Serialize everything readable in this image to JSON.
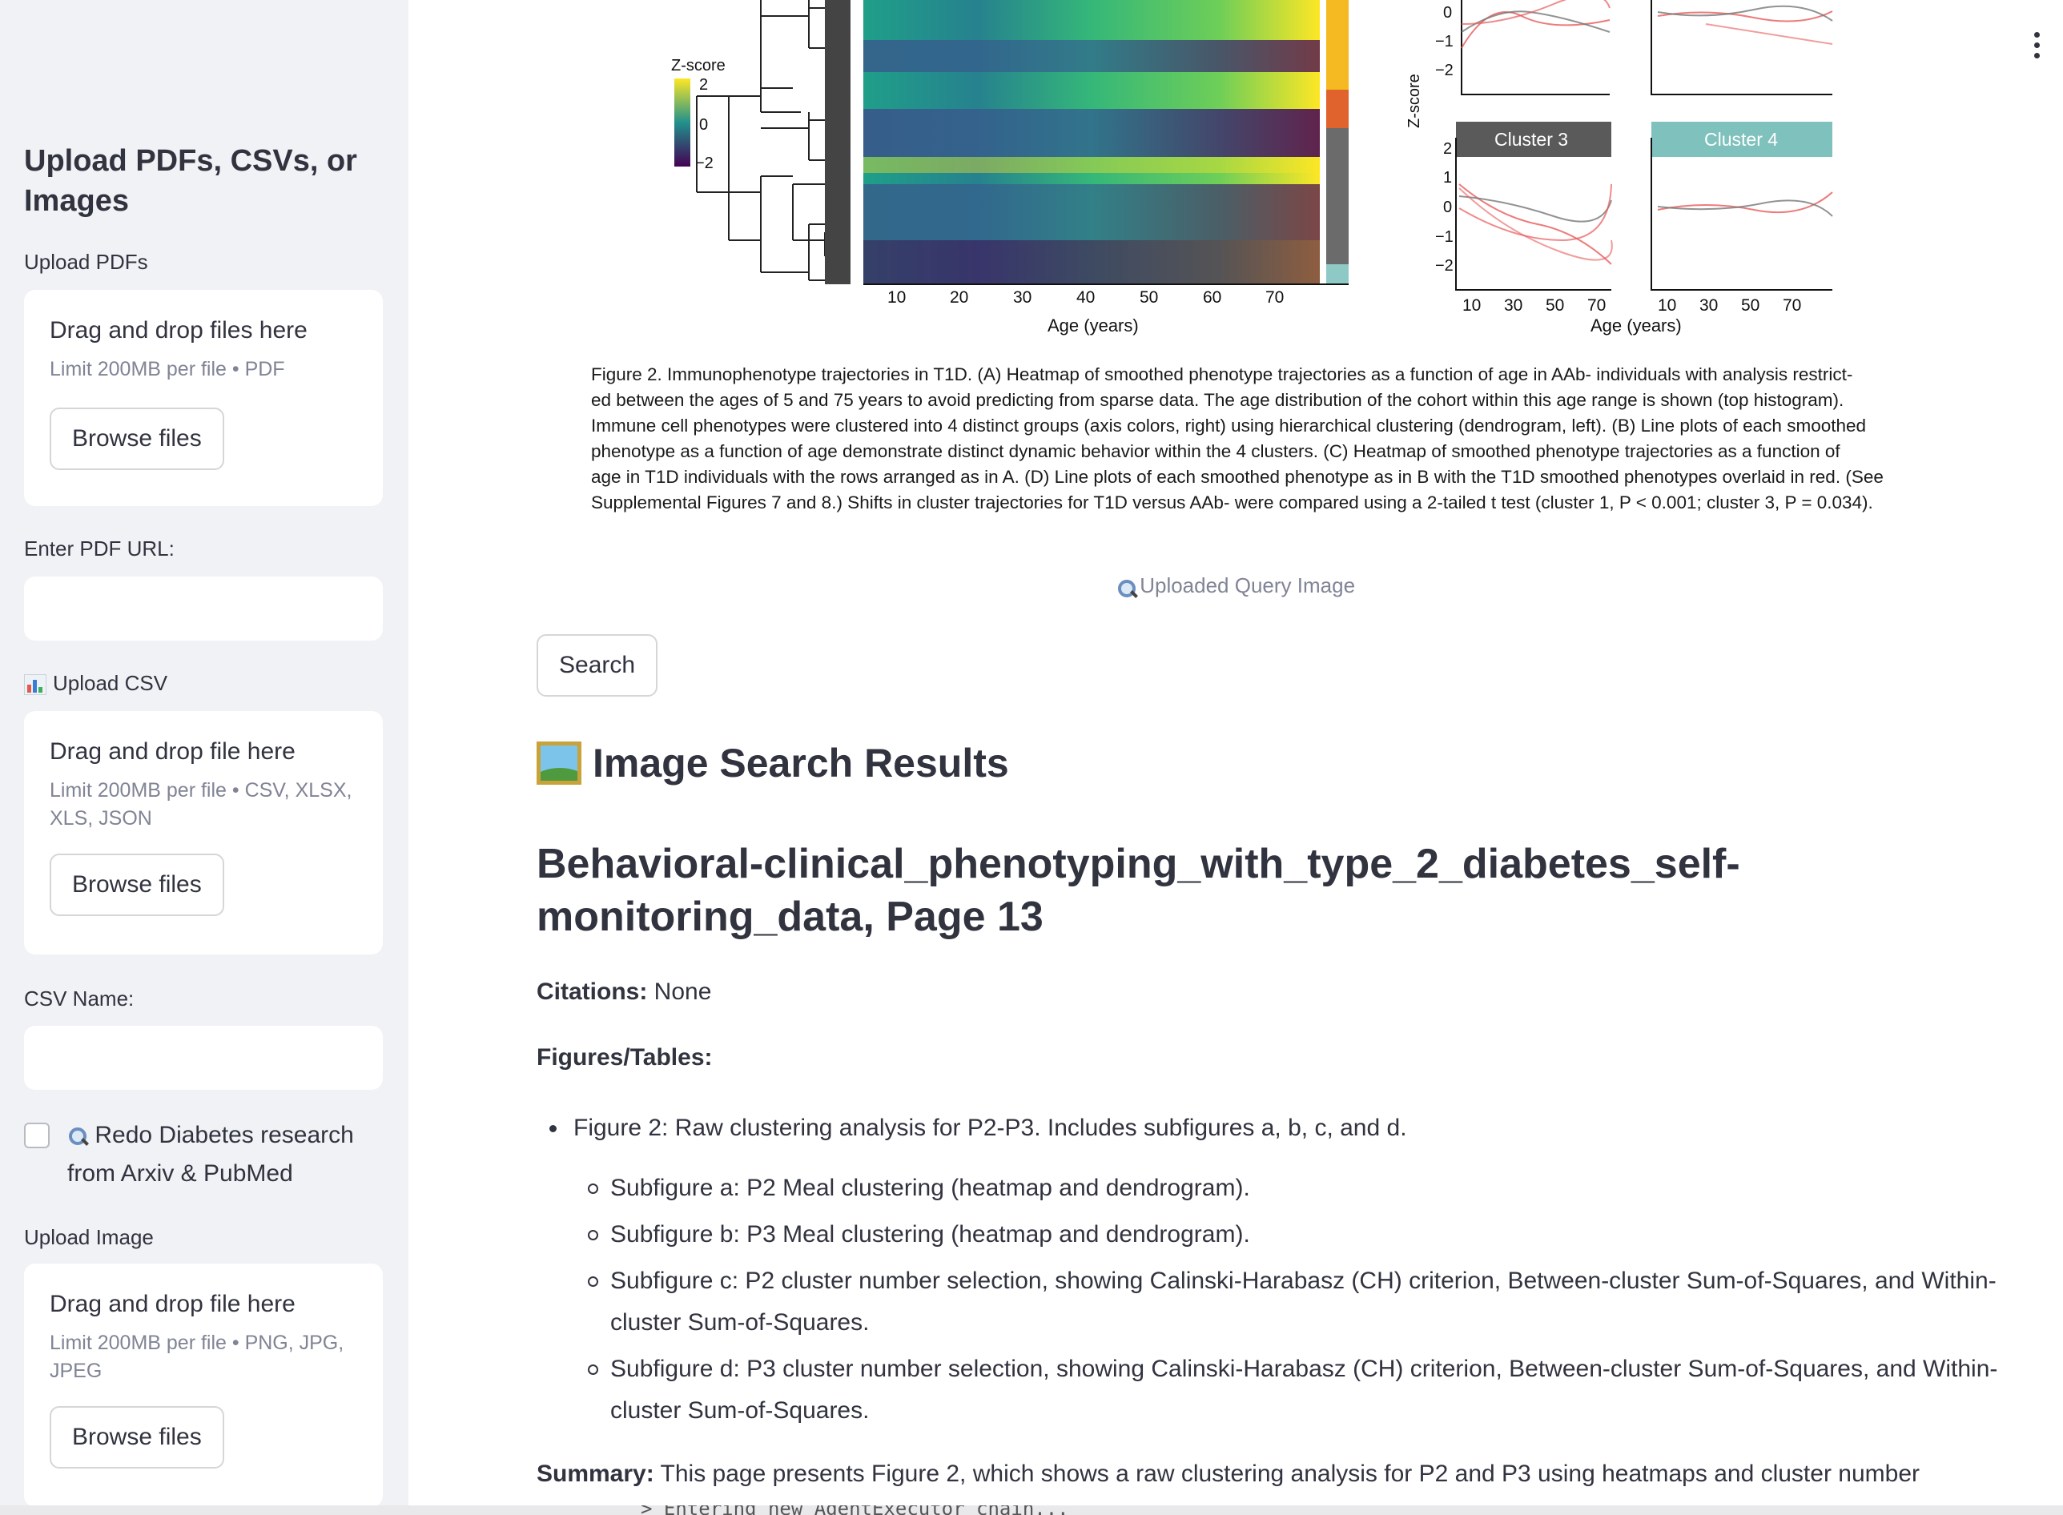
{
  "sidebar": {
    "title": "Upload PDFs, CSVs, or Images",
    "pdf_label": "Upload PDFs",
    "pdf_drop_title": "Drag and drop files here",
    "pdf_limit": "Limit 200MB per file • PDF",
    "browse_label": "Browse files",
    "pdf_url_label": "Enter PDF URL:",
    "pdf_url_value": "",
    "csv_label": "Upload CSV",
    "csv_drop_title": "Drag and drop file here",
    "csv_limit": "Limit 200MB per file • CSV, XLSX, XLS, JSON",
    "csv_name_label": "CSV Name:",
    "csv_name_value": "",
    "redo_label": "Redo Diabetes research from Arxiv & PubMed",
    "redo_checked": false,
    "image_label": "Upload Image",
    "image_drop_title": "Drag and drop file here",
    "image_limit": "Limit 200MB per file • PNG, JPG, JPEG"
  },
  "figure": {
    "heatmap_x_ticks": [
      "10",
      "20",
      "30",
      "40",
      "50",
      "60",
      "70"
    ],
    "heatmap_xlabel": "Age (years)",
    "zscore_label": "Z-score",
    "zscore_ticks": [
      "2",
      "0",
      "−2"
    ],
    "line_y_label": "Z-score",
    "line_top_ticks": [
      "0",
      "−1",
      "−2"
    ],
    "line_bottom_ticks": [
      "2",
      "1",
      "0",
      "−1",
      "−2"
    ],
    "line_x_ticks": [
      "10",
      "30",
      "50",
      "70"
    ],
    "line_xlabel": "Age (years)",
    "cluster3_label": "Cluster 3",
    "cluster4_label": "Cluster 4",
    "cluster_colors": [
      "#f5b921",
      "#e0622c",
      "#6b6b6b",
      "#8ec9c6"
    ]
  },
  "caption": {
    "lines": [
      "Figure 2. Immunophenotype trajectories in T1D. (A) Heatmap of smoothed phenotype trajectories as a function of age in AAb- individuals with analysis restrict-",
      "ed between the ages of 5 and 75 years to avoid predicting from sparse data. The age distribution of the cohort within this age range is shown (top histogram).",
      "Immune cell phenotypes were clustered into 4 distinct groups (axis colors, right) using hierarchical clustering (dendrogram, left). (B) Line plots of each smoothed",
      "phenotype as a function of age demonstrate distinct dynamic behavior within the 4 clusters. (C) Heatmap of smoothed phenotype trajectories as a function of",
      "age in T1D individuals with the rows arranged as in A. (D) Line plots of each smoothed phenotype as in B with the T1D smoothed phenotypes overlaid in red. (See",
      "Supplemental Figures 7 and 8.) Shifts in cluster trajectories for T1D versus AAb- were compared using a 2-tailed t test (cluster 1, P < 0.001; cluster 3, P = 0.034)."
    ]
  },
  "main": {
    "query_caption": "Uploaded Query Image",
    "search_label": "Search",
    "results_heading": "Image Search Results",
    "doc_title": "Behavioral-clinical_phenotyping_with_type_2_diabetes_self-monitoring_data, Page 13",
    "citations_label": "Citations:",
    "citations_value": "None",
    "figures_label": "Figures/Tables:",
    "figure_item": "Figure 2: Raw clustering analysis for P2-P3. Includes subfigures a, b, c, and d.",
    "subfigures": [
      "Subfigure a: P2 Meal clustering (heatmap and dendrogram).",
      "Subfigure b: P3 Meal clustering (heatmap and dendrogram).",
      "Subfigure c: P2 cluster number selection, showing Calinski-Harabasz (CH) criterion, Between-cluster Sum-of-Squares, and Within-cluster Sum-of-Squares.",
      "Subfigure d: P3 cluster number selection, showing Calinski-Harabasz (CH) criterion, Between-cluster Sum-of-Squares, and Within-cluster Sum-of-Squares."
    ],
    "summary_label": "Summary:",
    "summary_text": "This page presents Figure 2, which shows a raw clustering analysis for P2 and P3 using heatmaps and cluster number"
  },
  "terminal": {
    "text": "> Entering new AgentExecutor chain..."
  }
}
